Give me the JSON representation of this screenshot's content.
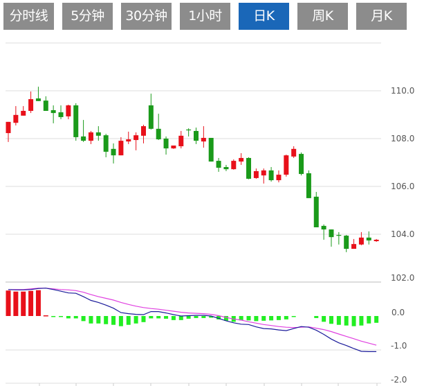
{
  "tabs": [
    {
      "label": "分时线",
      "active": false
    },
    {
      "label": "5分钟",
      "active": false
    },
    {
      "label": "30分钟",
      "active": false
    },
    {
      "label": "1小时",
      "active": false
    },
    {
      "label": "日K",
      "active": true
    },
    {
      "label": "周K",
      "active": false
    },
    {
      "label": "月K",
      "active": false
    }
  ],
  "colors": {
    "tab_bg": "#8c8c8c",
    "tab_active_bg": "#1a67b8",
    "up": "#e8101a",
    "down": "#1a9a1a",
    "hist_up": "#e8101a",
    "hist_down": "#22ee22",
    "dif": "#1a1a9a",
    "dea": "#e040e0",
    "grid": "#dddddd"
  },
  "chart_data": [
    {
      "type": "candlestick",
      "ylim": [
        102.0,
        112.0
      ],
      "y_ticks": [
        "110.0",
        "108.0",
        "106.0",
        "104.0",
        "102.0"
      ],
      "y_tick_values": [
        110,
        108,
        106,
        104,
        102
      ],
      "grid": true,
      "fields": [
        "open",
        "high",
        "low",
        "close"
      ],
      "candles": [
        [
          108.23,
          108.7,
          107.86,
          108.7
        ],
        [
          108.66,
          109.36,
          108.55,
          108.99
        ],
        [
          108.96,
          109.36,
          108.96,
          109.16
        ],
        [
          109.16,
          109.97,
          109.07,
          109.65
        ],
        [
          109.68,
          110.17,
          109.57,
          109.57
        ],
        [
          109.59,
          109.77,
          109.16,
          109.16
        ],
        [
          109.19,
          109.39,
          108.64,
          109.07
        ],
        [
          109.1,
          109.39,
          108.81,
          108.9
        ],
        [
          108.93,
          109.42,
          108.81,
          109.39
        ],
        [
          109.39,
          109.48,
          107.91,
          108.06
        ],
        [
          108.09,
          108.78,
          107.86,
          107.91
        ],
        [
          107.91,
          108.32,
          107.77,
          108.26
        ],
        [
          108.26,
          108.52,
          107.91,
          108.12
        ],
        [
          108.14,
          108.2,
          107.22,
          107.45
        ],
        [
          107.57,
          107.8,
          106.96,
          107.3
        ],
        [
          107.3,
          108.06,
          107.3,
          107.91
        ],
        [
          107.88,
          108.29,
          107.77,
          107.97
        ],
        [
          107.94,
          108.26,
          107.51,
          108.14
        ],
        [
          108.12,
          108.58,
          107.8,
          108.52
        ],
        [
          109.39,
          109.88,
          108.38,
          108.41
        ],
        [
          108.41,
          109.04,
          107.94,
          107.97
        ],
        [
          108.0,
          108.09,
          107.33,
          107.59
        ],
        [
          107.59,
          107.71,
          107.57,
          107.71
        ],
        [
          107.68,
          108.32,
          107.59,
          108.12
        ],
        [
          108.38,
          108.43,
          108.09,
          108.35
        ],
        [
          108.32,
          108.46,
          107.77,
          107.91
        ],
        [
          107.88,
          108.52,
          107.62,
          108.03
        ],
        [
          108.03,
          108.03,
          107.04,
          107.04
        ],
        [
          107.07,
          107.19,
          106.61,
          106.78
        ],
        [
          106.81,
          106.9,
          106.64,
          106.72
        ],
        [
          106.72,
          107.13,
          106.7,
          107.07
        ],
        [
          107.04,
          107.39,
          106.9,
          107.19
        ],
        [
          107.19,
          107.22,
          106.3,
          106.32
        ],
        [
          106.35,
          106.75,
          106.32,
          106.64
        ],
        [
          106.46,
          106.75,
          106.12,
          106.67
        ],
        [
          106.67,
          106.81,
          106.2,
          106.26
        ],
        [
          106.26,
          106.67,
          106.17,
          106.49
        ],
        [
          106.49,
          107.33,
          106.41,
          107.3
        ],
        [
          107.25,
          107.68,
          107.19,
          107.57
        ],
        [
          107.36,
          107.42,
          106.46,
          106.52
        ],
        [
          106.55,
          106.67,
          105.51,
          105.51
        ],
        [
          105.57,
          105.77,
          104.29,
          104.29
        ],
        [
          104.35,
          104.41,
          103.77,
          104.2
        ],
        [
          104.2,
          104.2,
          103.48,
          103.88
        ],
        [
          103.97,
          104.09,
          103.57,
          103.94
        ],
        [
          103.94,
          103.97,
          103.25,
          103.39
        ],
        [
          103.39,
          103.8,
          103.39,
          103.59
        ],
        [
          103.57,
          104.09,
          103.54,
          103.86
        ],
        [
          103.86,
          104.12,
          103.57,
          103.74
        ],
        [
          103.71,
          103.8,
          103.68,
          103.77
        ]
      ]
    },
    {
      "type": "macd",
      "ylim": [
        -2.0,
        1.0
      ],
      "y_ticks": [
        "0.0",
        "-1.0",
        "-2.0"
      ],
      "y_tick_values": [
        0,
        -1,
        -2
      ],
      "grid": true,
      "histogram": [
        0.75,
        0.72,
        0.72,
        0.74,
        0.76,
        0.02,
        -0.01,
        -0.03,
        -0.07,
        -0.07,
        -0.15,
        -0.22,
        -0.22,
        -0.24,
        -0.26,
        -0.3,
        -0.26,
        -0.22,
        -0.18,
        -0.07,
        -0.07,
        -0.08,
        -0.12,
        -0.12,
        -0.08,
        -0.06,
        -0.06,
        -0.05,
        -0.1,
        -0.14,
        -0.17,
        -0.13,
        -0.13,
        -0.15,
        -0.14,
        -0.13,
        -0.12,
        -0.1,
        -0.03,
        0,
        0,
        -0.06,
        -0.17,
        -0.23,
        -0.26,
        -0.28,
        -0.3,
        -0.28,
        -0.22,
        -0.2
      ],
      "dif": [
        0.78,
        0.77,
        0.77,
        0.78,
        0.81,
        0.82,
        0.78,
        0.73,
        0.68,
        0.67,
        0.57,
        0.46,
        0.4,
        0.32,
        0.23,
        0.1,
        0.07,
        0.05,
        0.04,
        0.13,
        0.13,
        0.09,
        0.04,
        0.0,
        0.01,
        0.02,
        0.02,
        0.0,
        -0.07,
        -0.14,
        -0.2,
        -0.24,
        -0.25,
        -0.32,
        -0.37,
        -0.38,
        -0.41,
        -0.43,
        -0.37,
        -0.31,
        -0.33,
        -0.42,
        -0.54,
        -0.68,
        -0.79,
        -0.87,
        -0.96,
        -1.04,
        -1.05,
        -1.05
      ],
      "dea": [
        0.78,
        0.78,
        0.78,
        0.8,
        0.82,
        0.82,
        0.8,
        0.78,
        0.77,
        0.75,
        0.7,
        0.63,
        0.57,
        0.52,
        0.47,
        0.4,
        0.34,
        0.29,
        0.25,
        0.22,
        0.2,
        0.17,
        0.14,
        0.11,
        0.09,
        0.08,
        0.07,
        0.05,
        0.01,
        -0.04,
        -0.09,
        -0.12,
        -0.17,
        -0.21,
        -0.25,
        -0.28,
        -0.31,
        -0.33,
        -0.34,
        -0.33,
        -0.32,
        -0.36,
        -0.4,
        -0.46,
        -0.53,
        -0.6,
        -0.67,
        -0.74,
        -0.8,
        -0.86
      ]
    }
  ]
}
